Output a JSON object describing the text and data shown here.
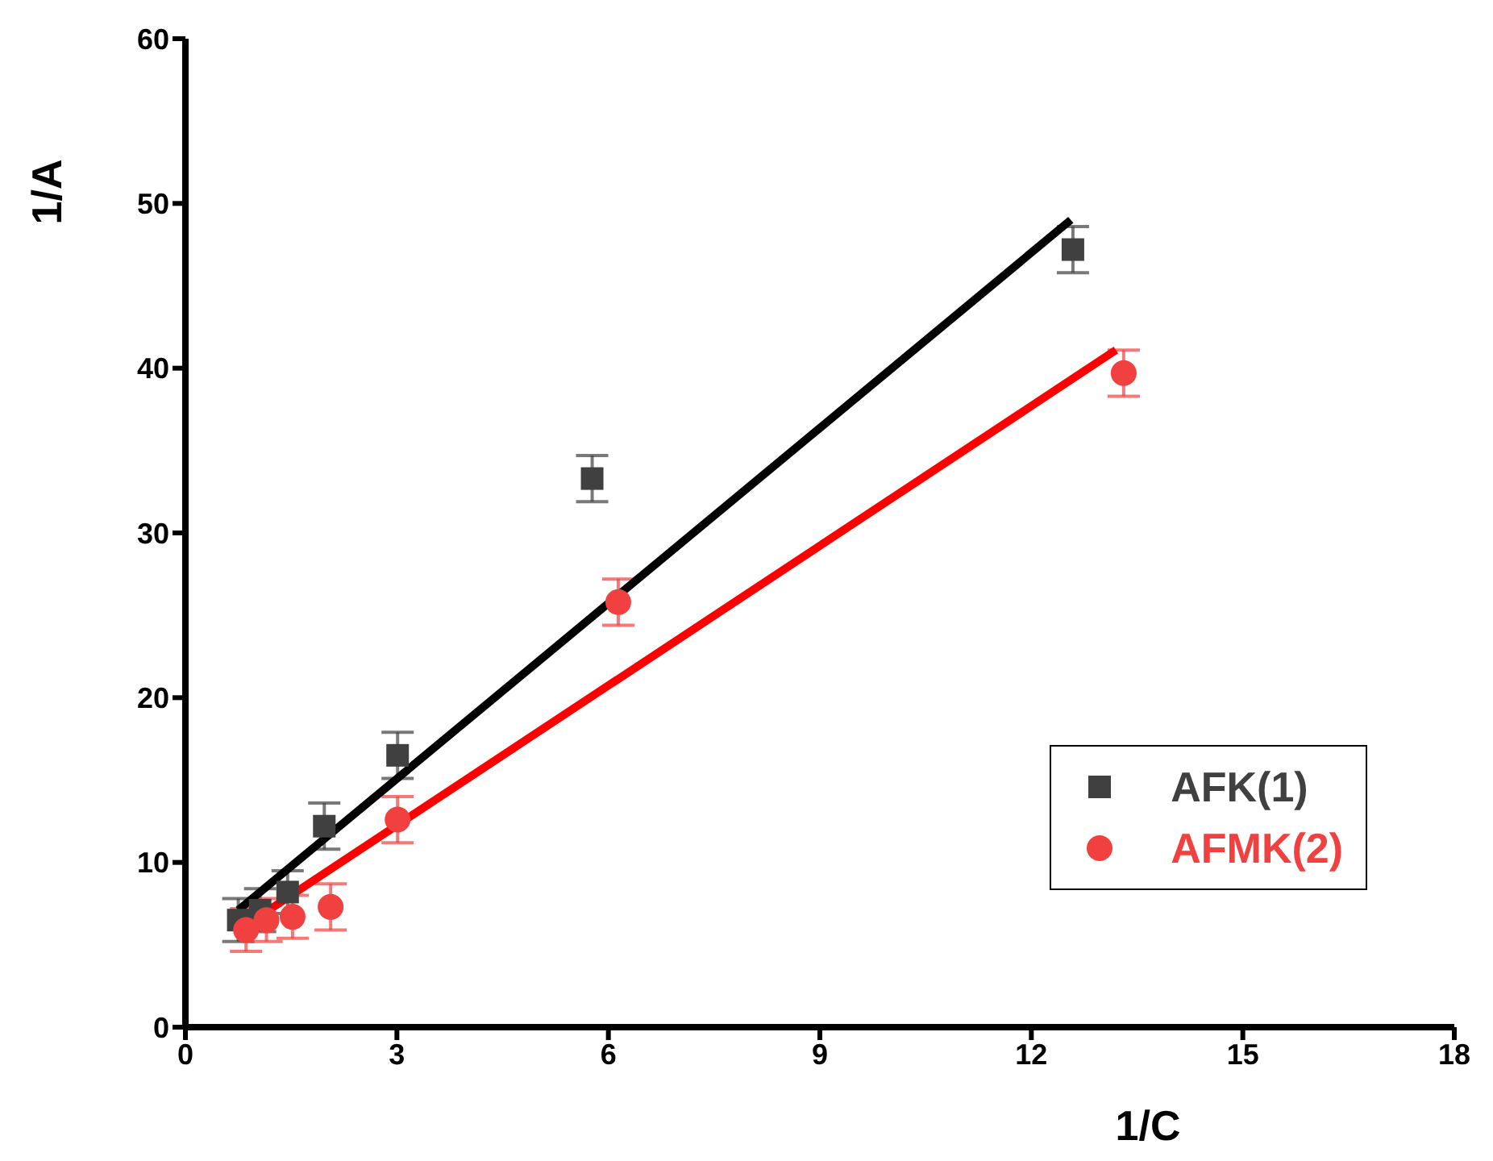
{
  "chart_data": {
    "type": "scatter",
    "xlabel": "1/C",
    "ylabel": "1/A",
    "xlim": [
      0,
      18
    ],
    "xticks": [
      0,
      3,
      6,
      9,
      12,
      15,
      18
    ],
    "ylim": [
      0,
      60
    ],
    "yticks": [
      0,
      10,
      20,
      30,
      40,
      50,
      60
    ],
    "grid": false,
    "legend": "bottom right",
    "series": [
      {
        "name": "AFK(1)",
        "color": "#404040",
        "marker": "square",
        "x": [
          0.75,
          1.06,
          1.45,
          1.97,
          3.01,
          5.77,
          12.59
        ],
        "values": [
          6.5,
          7.1,
          8.2,
          12.2,
          16.5,
          33.3,
          47.2
        ],
        "errors": [
          1.3,
          1.3,
          1.3,
          1.4,
          1.4,
          1.4,
          1.4
        ]
      },
      {
        "name": "AFMK(2)",
        "color": "#f04040",
        "marker": "circle",
        "x": [
          0.86,
          1.15,
          1.52,
          2.06,
          3.01,
          6.14,
          13.31
        ],
        "values": [
          5.9,
          6.5,
          6.7,
          7.3,
          12.6,
          25.8,
          39.7
        ],
        "errors": [
          1.3,
          1.3,
          1.3,
          1.4,
          1.4,
          1.4,
          1.4
        ]
      },
      {
        "type": "line",
        "color": "#000000",
        "x": [
          0.75,
          12.56
        ],
        "values": [
          7.1,
          49.0
        ]
      },
      {
        "type": "line",
        "color": "#ff0000",
        "x": [
          0.86,
          13.2
        ],
        "values": [
          6.2,
          41.1
        ]
      }
    ]
  }
}
